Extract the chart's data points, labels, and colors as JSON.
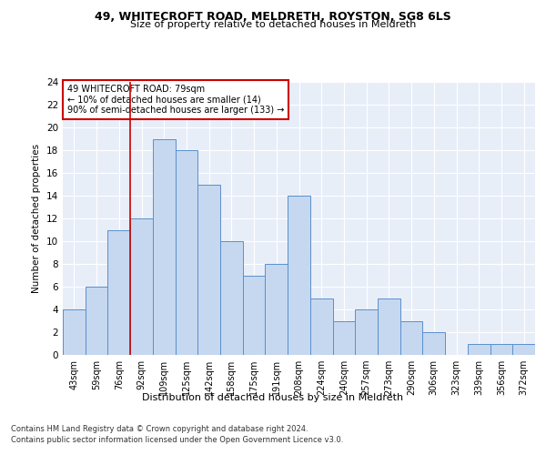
{
  "title1": "49, WHITECROFT ROAD, MELDRETH, ROYSTON, SG8 6LS",
  "title2": "Size of property relative to detached houses in Meldreth",
  "xlabel": "Distribution of detached houses by size in Meldreth",
  "ylabel": "Number of detached properties",
  "categories": [
    "43sqm",
    "59sqm",
    "76sqm",
    "92sqm",
    "109sqm",
    "125sqm",
    "142sqm",
    "158sqm",
    "175sqm",
    "191sqm",
    "208sqm",
    "224sqm",
    "240sqm",
    "257sqm",
    "273sqm",
    "290sqm",
    "306sqm",
    "323sqm",
    "339sqm",
    "356sqm",
    "372sqm"
  ],
  "values": [
    4,
    6,
    11,
    12,
    19,
    18,
    15,
    10,
    7,
    8,
    14,
    5,
    3,
    4,
    5,
    3,
    2,
    0,
    1,
    1,
    1
  ],
  "bar_color": "#c5d8f0",
  "bar_edge_color": "#5b8fcc",
  "ylim": [
    0,
    24
  ],
  "yticks": [
    0,
    2,
    4,
    6,
    8,
    10,
    12,
    14,
    16,
    18,
    20,
    22,
    24
  ],
  "property_line_x": 2.5,
  "annotation_title": "49 WHITECROFT ROAD: 79sqm",
  "annotation_line1": "← 10% of detached houses are smaller (14)",
  "annotation_line2": "90% of semi-detached houses are larger (133) →",
  "vline_color": "#cc0000",
  "annotation_box_color": "#ffffff",
  "annotation_box_edge": "#cc0000",
  "footer1": "Contains HM Land Registry data © Crown copyright and database right 2024.",
  "footer2": "Contains public sector information licensed under the Open Government Licence v3.0.",
  "bg_color": "#ffffff",
  "plot_bg_color": "#e8eef8"
}
